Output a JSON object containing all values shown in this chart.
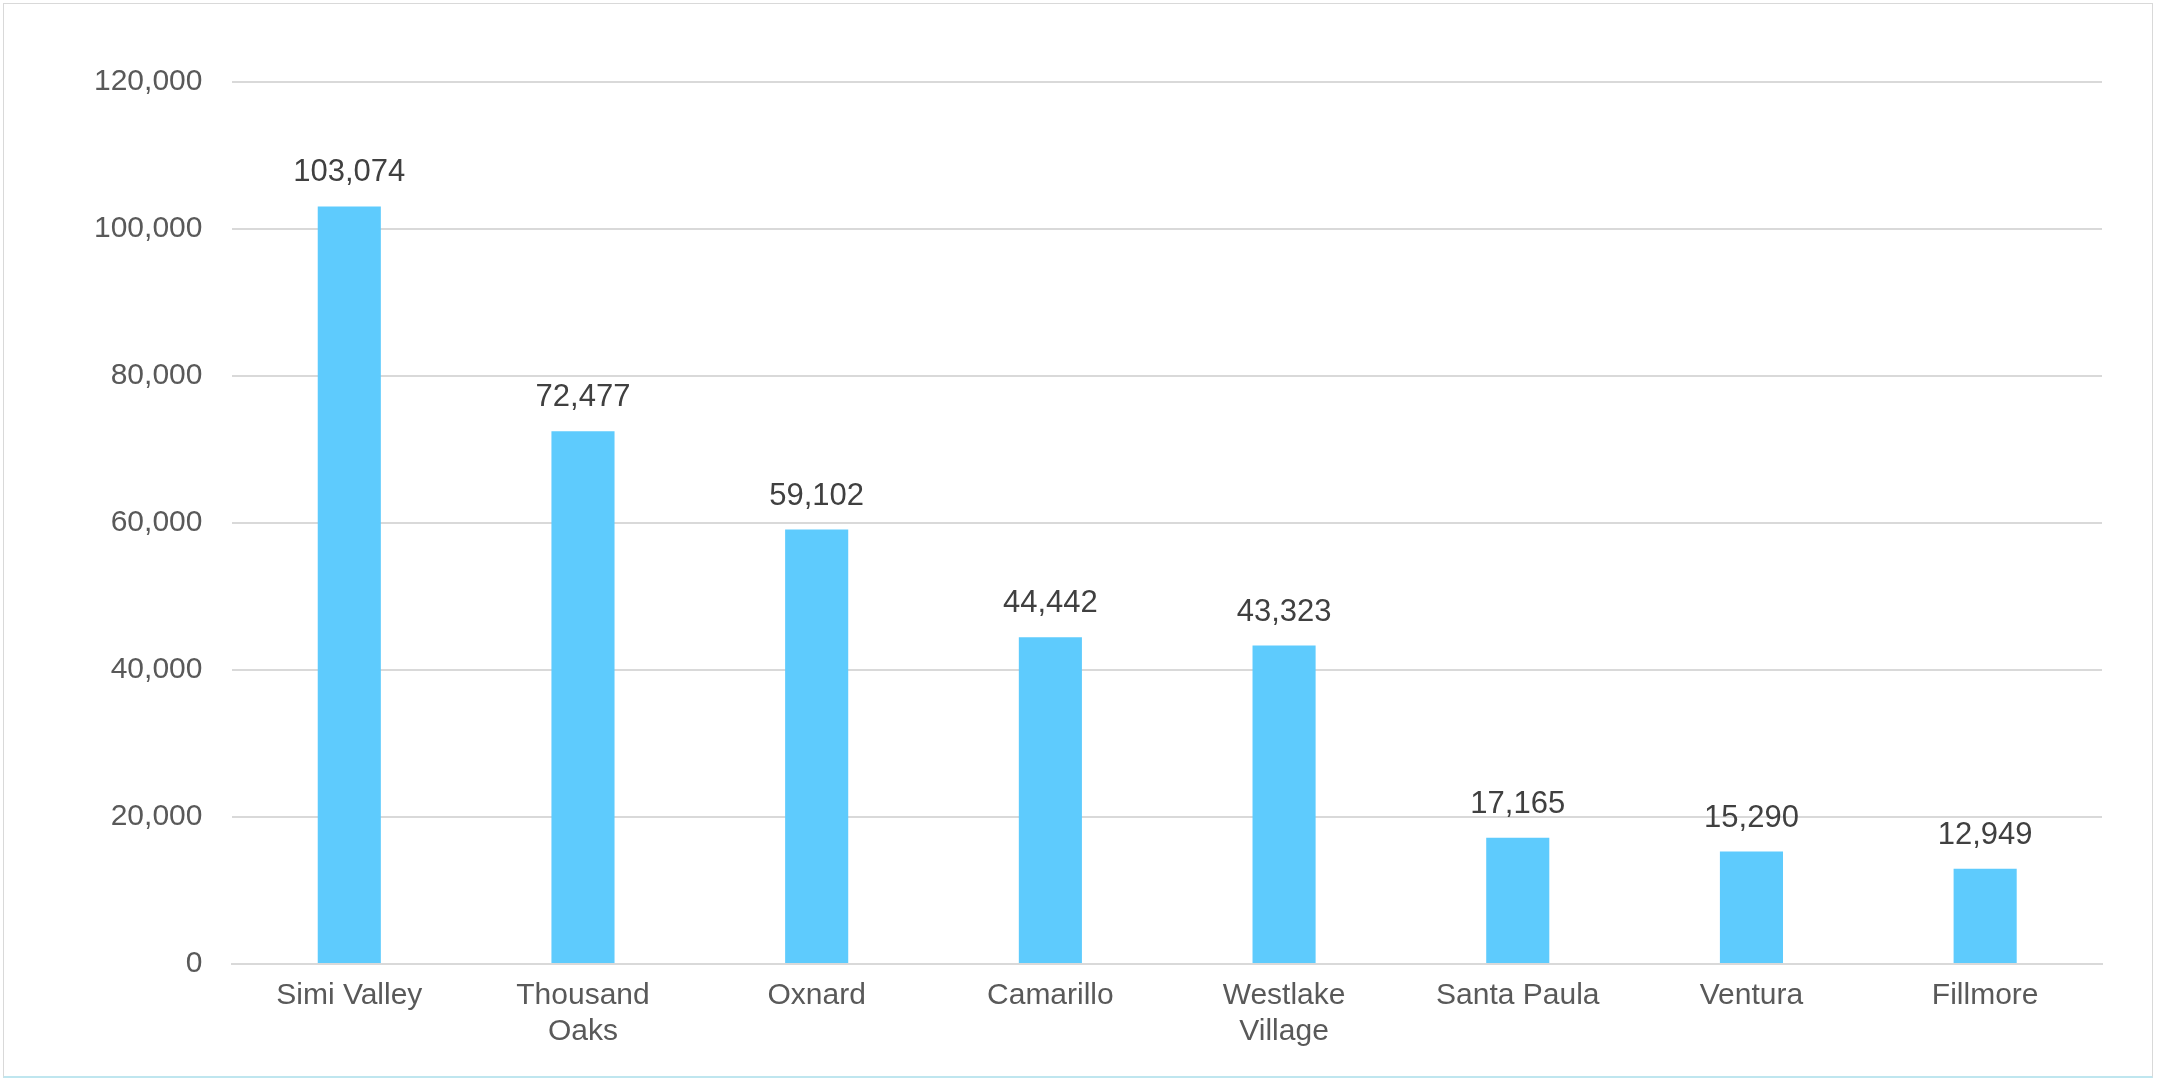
{
  "chart_data": {
    "type": "bar",
    "categories": [
      "Simi Valley",
      "Thousand Oaks",
      "Oxnard",
      "Camarillo",
      "Westlake Village",
      "Santa Paula",
      "Ventura",
      "Fillmore"
    ],
    "values": [
      103074,
      72477,
      59102,
      44442,
      43323,
      17165,
      15290,
      12949
    ],
    "value_labels": [
      "103,074",
      "72,477",
      "59,102",
      "44,442",
      "43,323",
      "17,165",
      "15,290",
      "12,949"
    ],
    "color": "#5ecbfd",
    "ylim": [
      0,
      120000
    ],
    "yticks": [
      0,
      {
        "value": 20000,
        "label": "20,000"
      },
      {
        "value": 40000,
        "label": "40,000"
      },
      {
        "value": 60000,
        "label": "60,000"
      },
      {
        "value": 80000,
        "label": "80,000"
      },
      {
        "value": 100000,
        "label": "100,000"
      },
      {
        "value": 120000,
        "label": "120,000"
      }
    ],
    "grid": "y",
    "legend": false
  }
}
